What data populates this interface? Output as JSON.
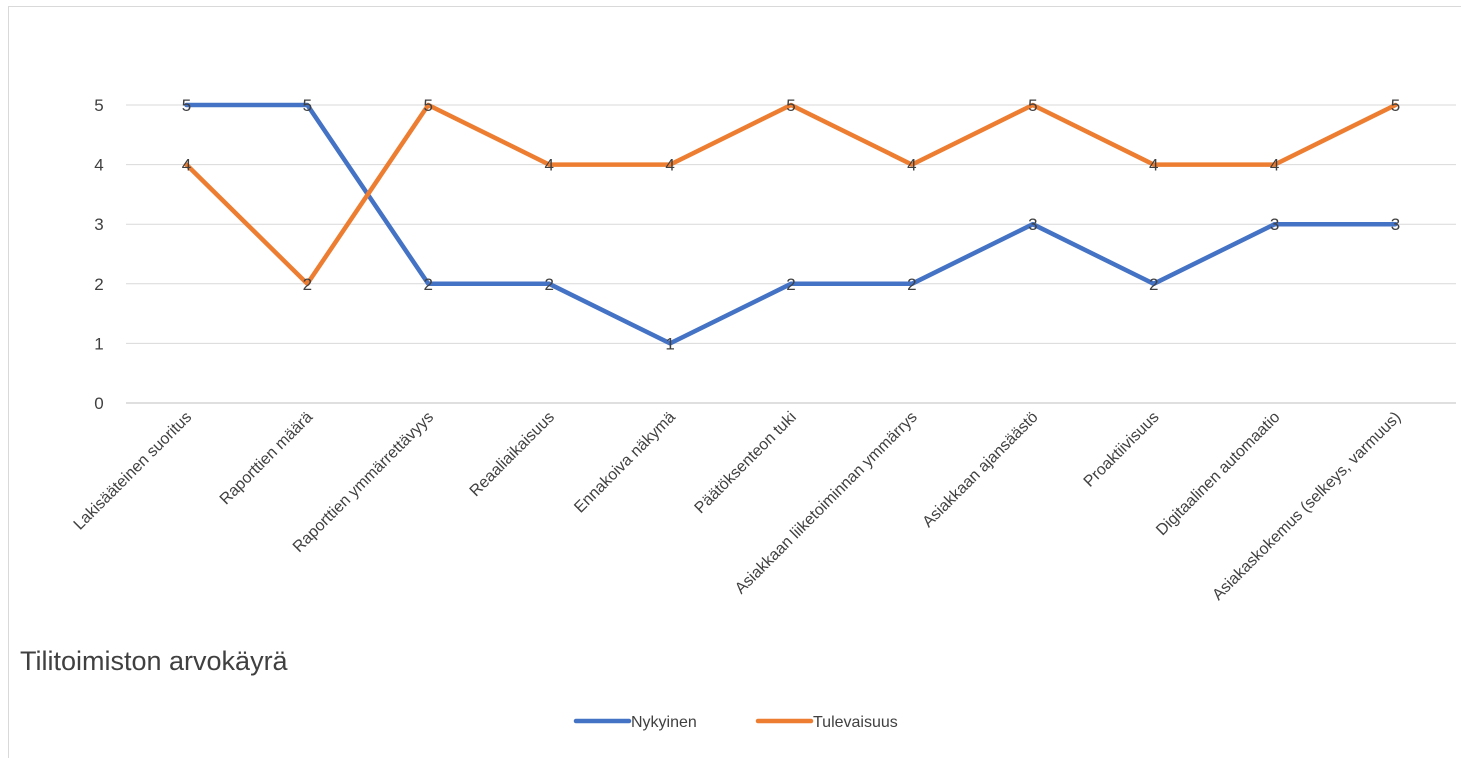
{
  "chart_data": {
    "type": "line",
    "title": "Tilitoimiston arvokäyrä",
    "xlabel": "",
    "ylabel": "",
    "ylim": [
      0,
      5
    ],
    "yticks": [
      0,
      1,
      2,
      3,
      4,
      5
    ],
    "grid": true,
    "legend_position": "bottom",
    "categories": [
      "Lakisääteinen suoritus",
      "Raporttien määrä",
      "Raporttien ymmärrettävyys",
      "Reaaliaikaisuus",
      "Ennakoiva näkymä",
      "Päätöksenteon tuki",
      "Asiakkaan liiketoiminnan ymmärrys",
      "Asiakkaan ajansäästö",
      "Proaktiivisuus",
      "Digitaalinen automaatio",
      "Asiakaskokemus (selkeys, varmuus)"
    ],
    "series": [
      {
        "name": "Nykyinen",
        "color": "#4472c4",
        "values": [
          5,
          5,
          2,
          2,
          1,
          2,
          2,
          3,
          2,
          3,
          3
        ]
      },
      {
        "name": "Tulevaisuus",
        "color": "#ed7d31",
        "values": [
          4,
          2,
          5,
          4,
          4,
          5,
          4,
          5,
          4,
          4,
          5
        ]
      }
    ]
  }
}
